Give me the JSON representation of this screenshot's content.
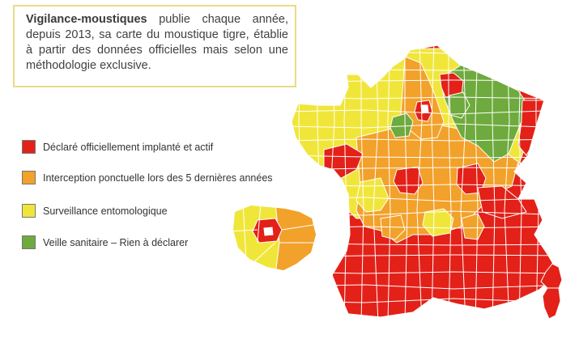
{
  "intro": {
    "brand": "Vigilance-moustiques",
    "text": " publie chaque année, depuis 2013, sa carte du moustique tigre, établie à partir des données officielles mais selon une méthodologie exclusive."
  },
  "colors": {
    "red": "#e32119",
    "orange": "#f2a12a",
    "yellow": "#f0e63a",
    "green": "#6eaa3d",
    "border": "#ffffff",
    "frame": "#e8dc86"
  },
  "legend": [
    {
      "key": "red",
      "label": "Déclaré officiellement implanté et actif"
    },
    {
      "key": "orange",
      "label": "Interception ponctuelle lors des 5 dernières années"
    },
    {
      "key": "yellow",
      "label": "Surveillance entomologique"
    },
    {
      "key": "green",
      "label": "Veille sanitaire – Rien à déclarer"
    }
  ]
}
